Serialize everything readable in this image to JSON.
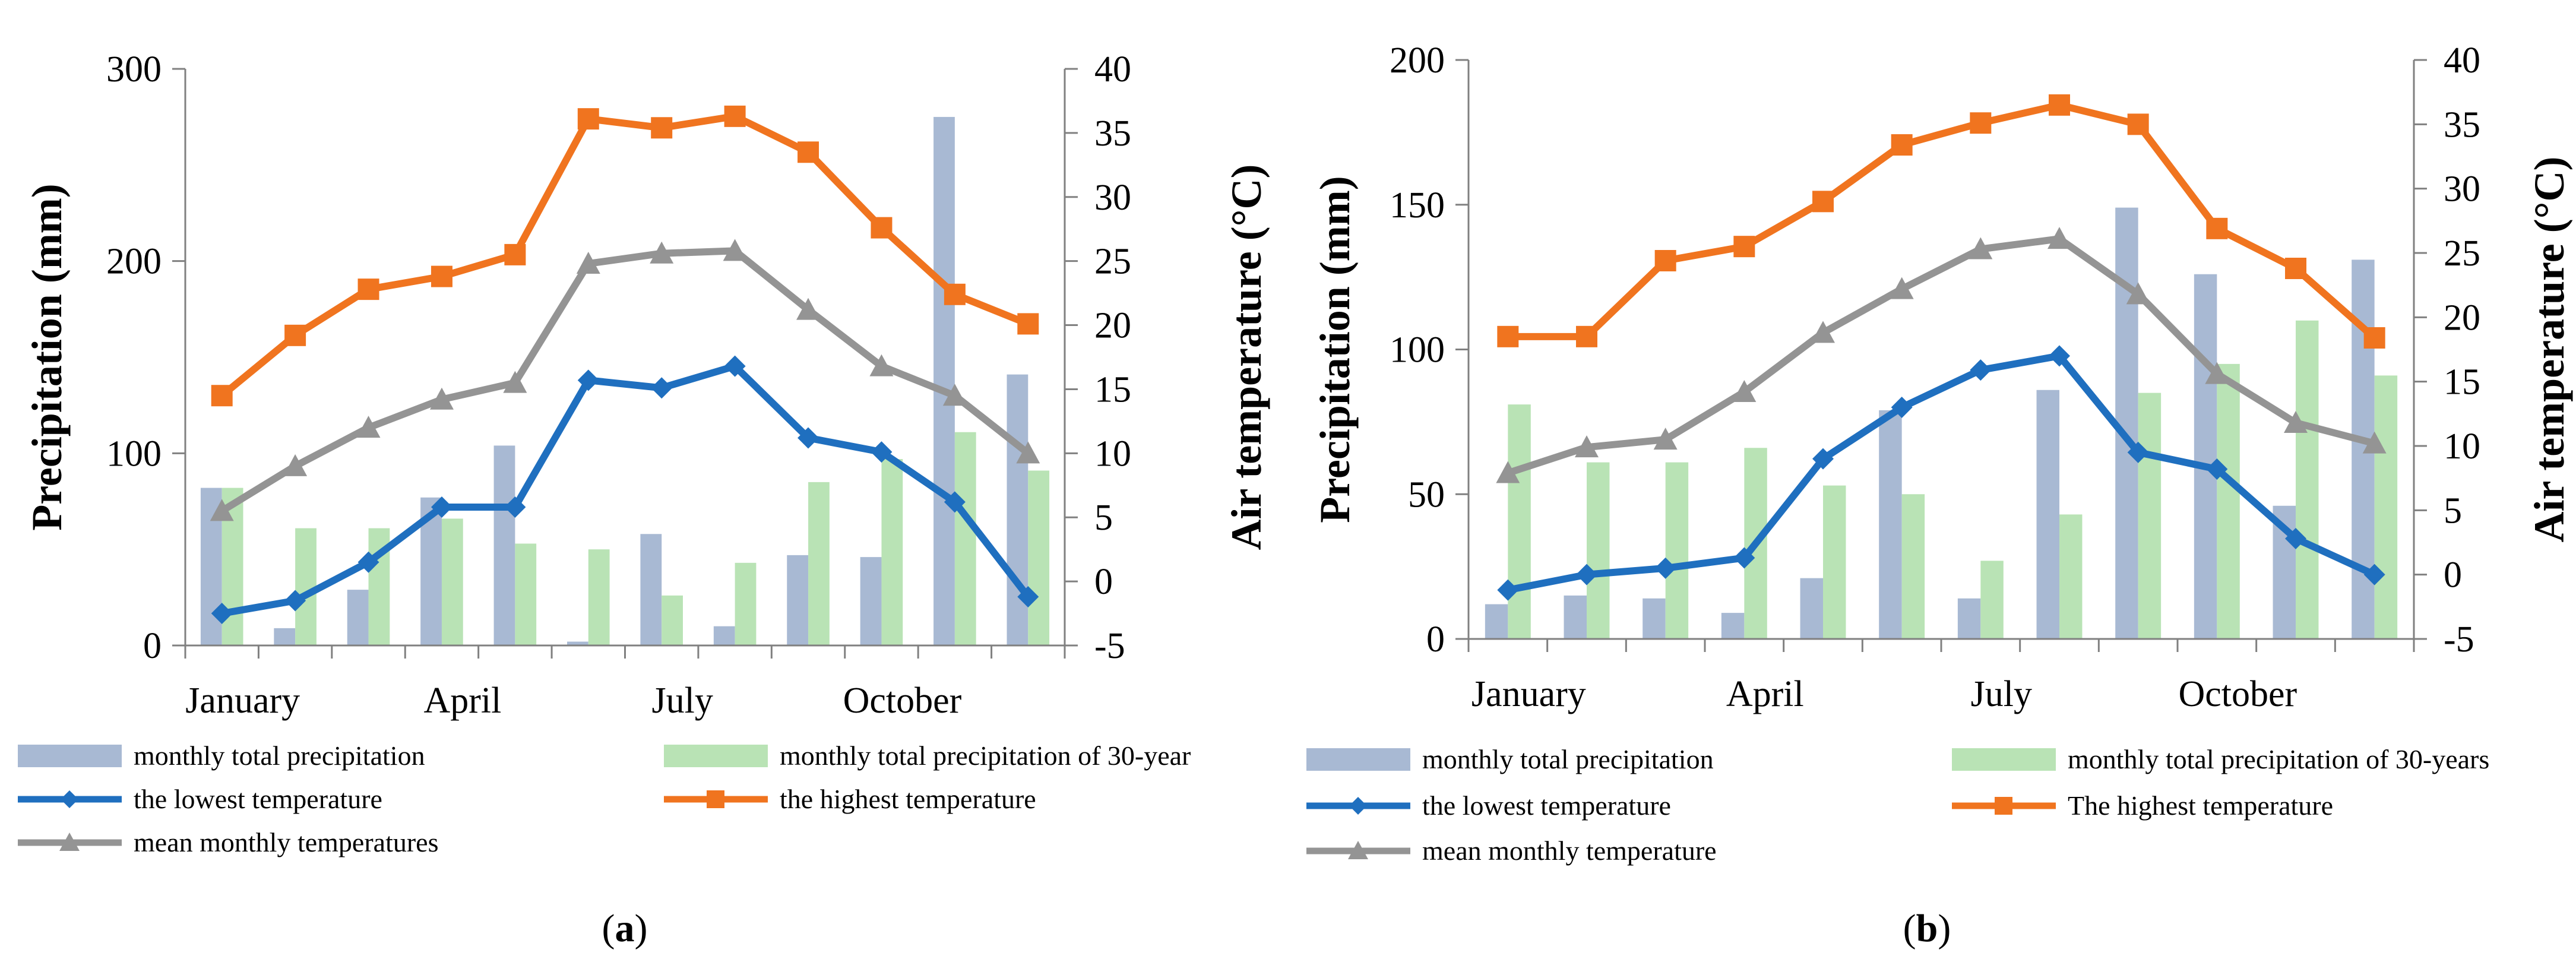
{
  "colors": {
    "precip": "#a8b9d3",
    "precip30": "#b9e3b5",
    "lowest": "#1f6fbf",
    "highest": "#f0741f",
    "mean": "#949494"
  },
  "chart_data": [
    {
      "id": "a",
      "type": "bar+line",
      "panel_label": "a",
      "ylabel_left": "Precipitation (mm)",
      "ylabel_right": "Air temperature (°C)",
      "yleft_lim": [
        0,
        300
      ],
      "yleft_ticks": [
        "0",
        "100",
        "200",
        "300"
      ],
      "yright_lim": [
        -5,
        40
      ],
      "yright_ticks": [
        "-5",
        "0",
        "5",
        "10",
        "15",
        "20",
        "25",
        "30",
        "35",
        "40"
      ],
      "x_tick_labels": [
        "January",
        "April",
        "July",
        "October"
      ],
      "x_tick_months": [
        1,
        4,
        7,
        10
      ],
      "months": [
        1,
        2,
        3,
        4,
        5,
        6,
        7,
        8,
        9,
        10,
        11,
        12
      ],
      "bar_series": [
        {
          "name": "monthly total precipitation",
          "key": "precip",
          "values": [
            82,
            9,
            29,
            77,
            104,
            2,
            58,
            10,
            47,
            46,
            275,
            141
          ]
        },
        {
          "name": "monthly total precipitation of 30-year",
          "key": "precip30",
          "values": [
            82,
            61,
            61,
            66,
            53,
            50,
            26,
            43,
            85,
            97,
            111,
            91
          ]
        }
      ],
      "line_series": [
        {
          "name": "the lowest temperature",
          "key": "lowest",
          "marker": "diamond",
          "values": [
            -2.5,
            -1.5,
            1.5,
            5.8,
            5.8,
            15.7,
            15.1,
            16.8,
            11.2,
            10.1,
            6.2,
            -1.2
          ]
        },
        {
          "name": "the highest temperature",
          "key": "highest",
          "marker": "square",
          "values": [
            14.5,
            19.2,
            22.8,
            23.8,
            25.5,
            36.1,
            35.4,
            36.3,
            33.5,
            27.6,
            22.4,
            20.1
          ]
        },
        {
          "name": "mean monthly temperatures",
          "key": "mean",
          "marker": "triangle",
          "values": [
            5.5,
            9.0,
            12.0,
            14.2,
            15.5,
            24.8,
            25.6,
            25.8,
            21.2,
            16.8,
            14.5,
            10.0
          ]
        }
      ],
      "legend": [
        {
          "label": "monthly total precipitation",
          "key": "precip",
          "kind": "bar"
        },
        {
          "label": "monthly total precipitation of 30-year",
          "key": "precip30",
          "kind": "bar"
        },
        {
          "label": "the lowest temperature",
          "key": "lowest",
          "kind": "line",
          "marker": "diamond"
        },
        {
          "label": "the highest temperature",
          "key": "highest",
          "kind": "line",
          "marker": "square"
        },
        {
          "label": "mean monthly temperatures",
          "key": "mean",
          "kind": "line",
          "marker": "triangle"
        }
      ]
    },
    {
      "id": "b",
      "type": "bar+line",
      "panel_label": "b",
      "ylabel_left": "Precipitation (mm)",
      "ylabel_right": "Air temperature (°C)",
      "yleft_lim": [
        0,
        200
      ],
      "yleft_ticks": [
        "0",
        "50",
        "100",
        "150",
        "200"
      ],
      "yright_lim": [
        -5,
        40
      ],
      "yright_ticks": [
        "-5",
        "0",
        "5",
        "10",
        "15",
        "20",
        "25",
        "30",
        "35",
        "40"
      ],
      "x_tick_labels": [
        "January",
        "April",
        "July",
        "October"
      ],
      "x_tick_months": [
        1,
        4,
        7,
        10
      ],
      "months": [
        1,
        2,
        3,
        4,
        5,
        6,
        7,
        8,
        9,
        10,
        11,
        12
      ],
      "bar_series": [
        {
          "name": "monthly total precipitation",
          "key": "precip",
          "values": [
            12,
            15,
            14,
            9,
            21,
            79,
            14,
            86,
            149,
            126,
            46,
            131
          ]
        },
        {
          "name": "monthly total precipitation of 30-years",
          "key": "precip30",
          "values": [
            81,
            61,
            61,
            66,
            53,
            50,
            27,
            43,
            85,
            95,
            110,
            91
          ]
        }
      ],
      "line_series": [
        {
          "name": "the lowest temperature",
          "key": "lowest",
          "marker": "diamond",
          "values": [
            -1.2,
            0.0,
            0.5,
            1.3,
            9.0,
            13.0,
            15.9,
            17.0,
            9.5,
            8.2,
            2.8,
            0.0
          ]
        },
        {
          "name": "The highest temperature",
          "key": "highest",
          "marker": "square",
          "values": [
            18.5,
            18.5,
            24.4,
            25.5,
            29.0,
            33.4,
            35.1,
            36.5,
            35.0,
            26.9,
            23.8,
            18.4
          ]
        },
        {
          "name": "mean monthly temperature",
          "key": "mean",
          "marker": "triangle",
          "values": [
            7.9,
            9.9,
            10.5,
            14.2,
            18.8,
            22.2,
            25.3,
            26.1,
            21.8,
            15.6,
            11.8,
            10.2
          ]
        }
      ],
      "legend": [
        {
          "label": "monthly total precipitation",
          "key": "precip",
          "kind": "bar"
        },
        {
          "label": "monthly total precipitation of 30-years",
          "key": "precip30",
          "kind": "bar"
        },
        {
          "label": "the lowest temperature",
          "key": "lowest",
          "kind": "line",
          "marker": "diamond"
        },
        {
          "label": "The highest temperature",
          "key": "highest",
          "kind": "line",
          "marker": "square"
        },
        {
          "label": "mean monthly temperature",
          "key": "mean",
          "kind": "line",
          "marker": "triangle"
        }
      ]
    }
  ]
}
